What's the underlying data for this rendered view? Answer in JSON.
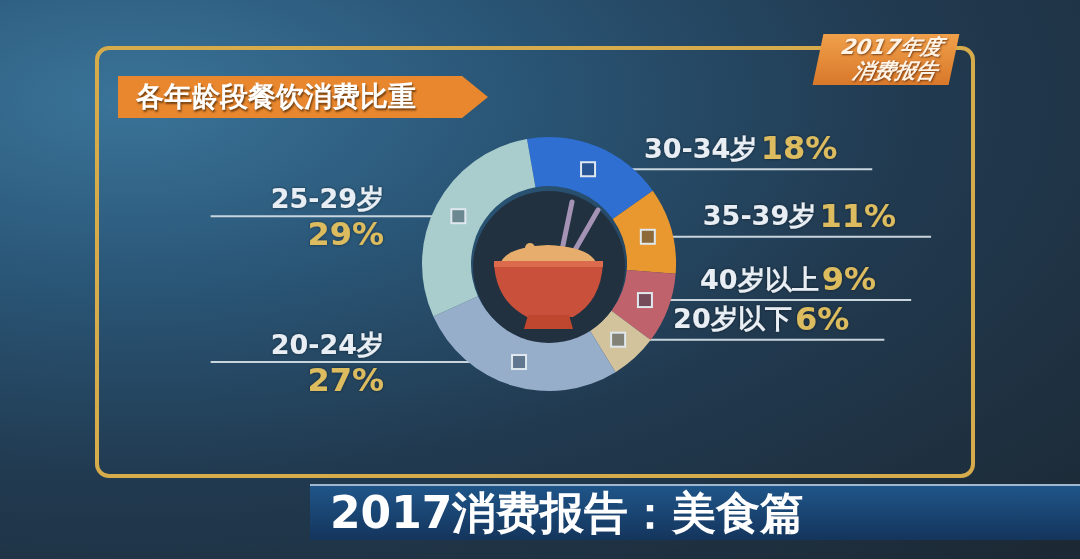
{
  "chart_data": {
    "type": "donut",
    "title": "各年龄段餐饮消费比重",
    "categories": [
      "30-34岁",
      "35-39岁",
      "40岁以上",
      "20岁以下",
      "20-24岁",
      "25-29岁"
    ],
    "values": [
      18,
      11,
      9,
      6,
      27,
      29
    ],
    "value_labels": [
      "18%",
      "11%",
      "9%",
      "6%",
      "27%",
      "29%"
    ],
    "colors": [
      "#2f6fd2",
      "#e9982f",
      "#c0626b",
      "#d3c39d",
      "#97aecb",
      "#a9cccd"
    ],
    "annotations": [
      "2017年度消费报告",
      "2017消费报告：美食篇"
    ]
  }
}
